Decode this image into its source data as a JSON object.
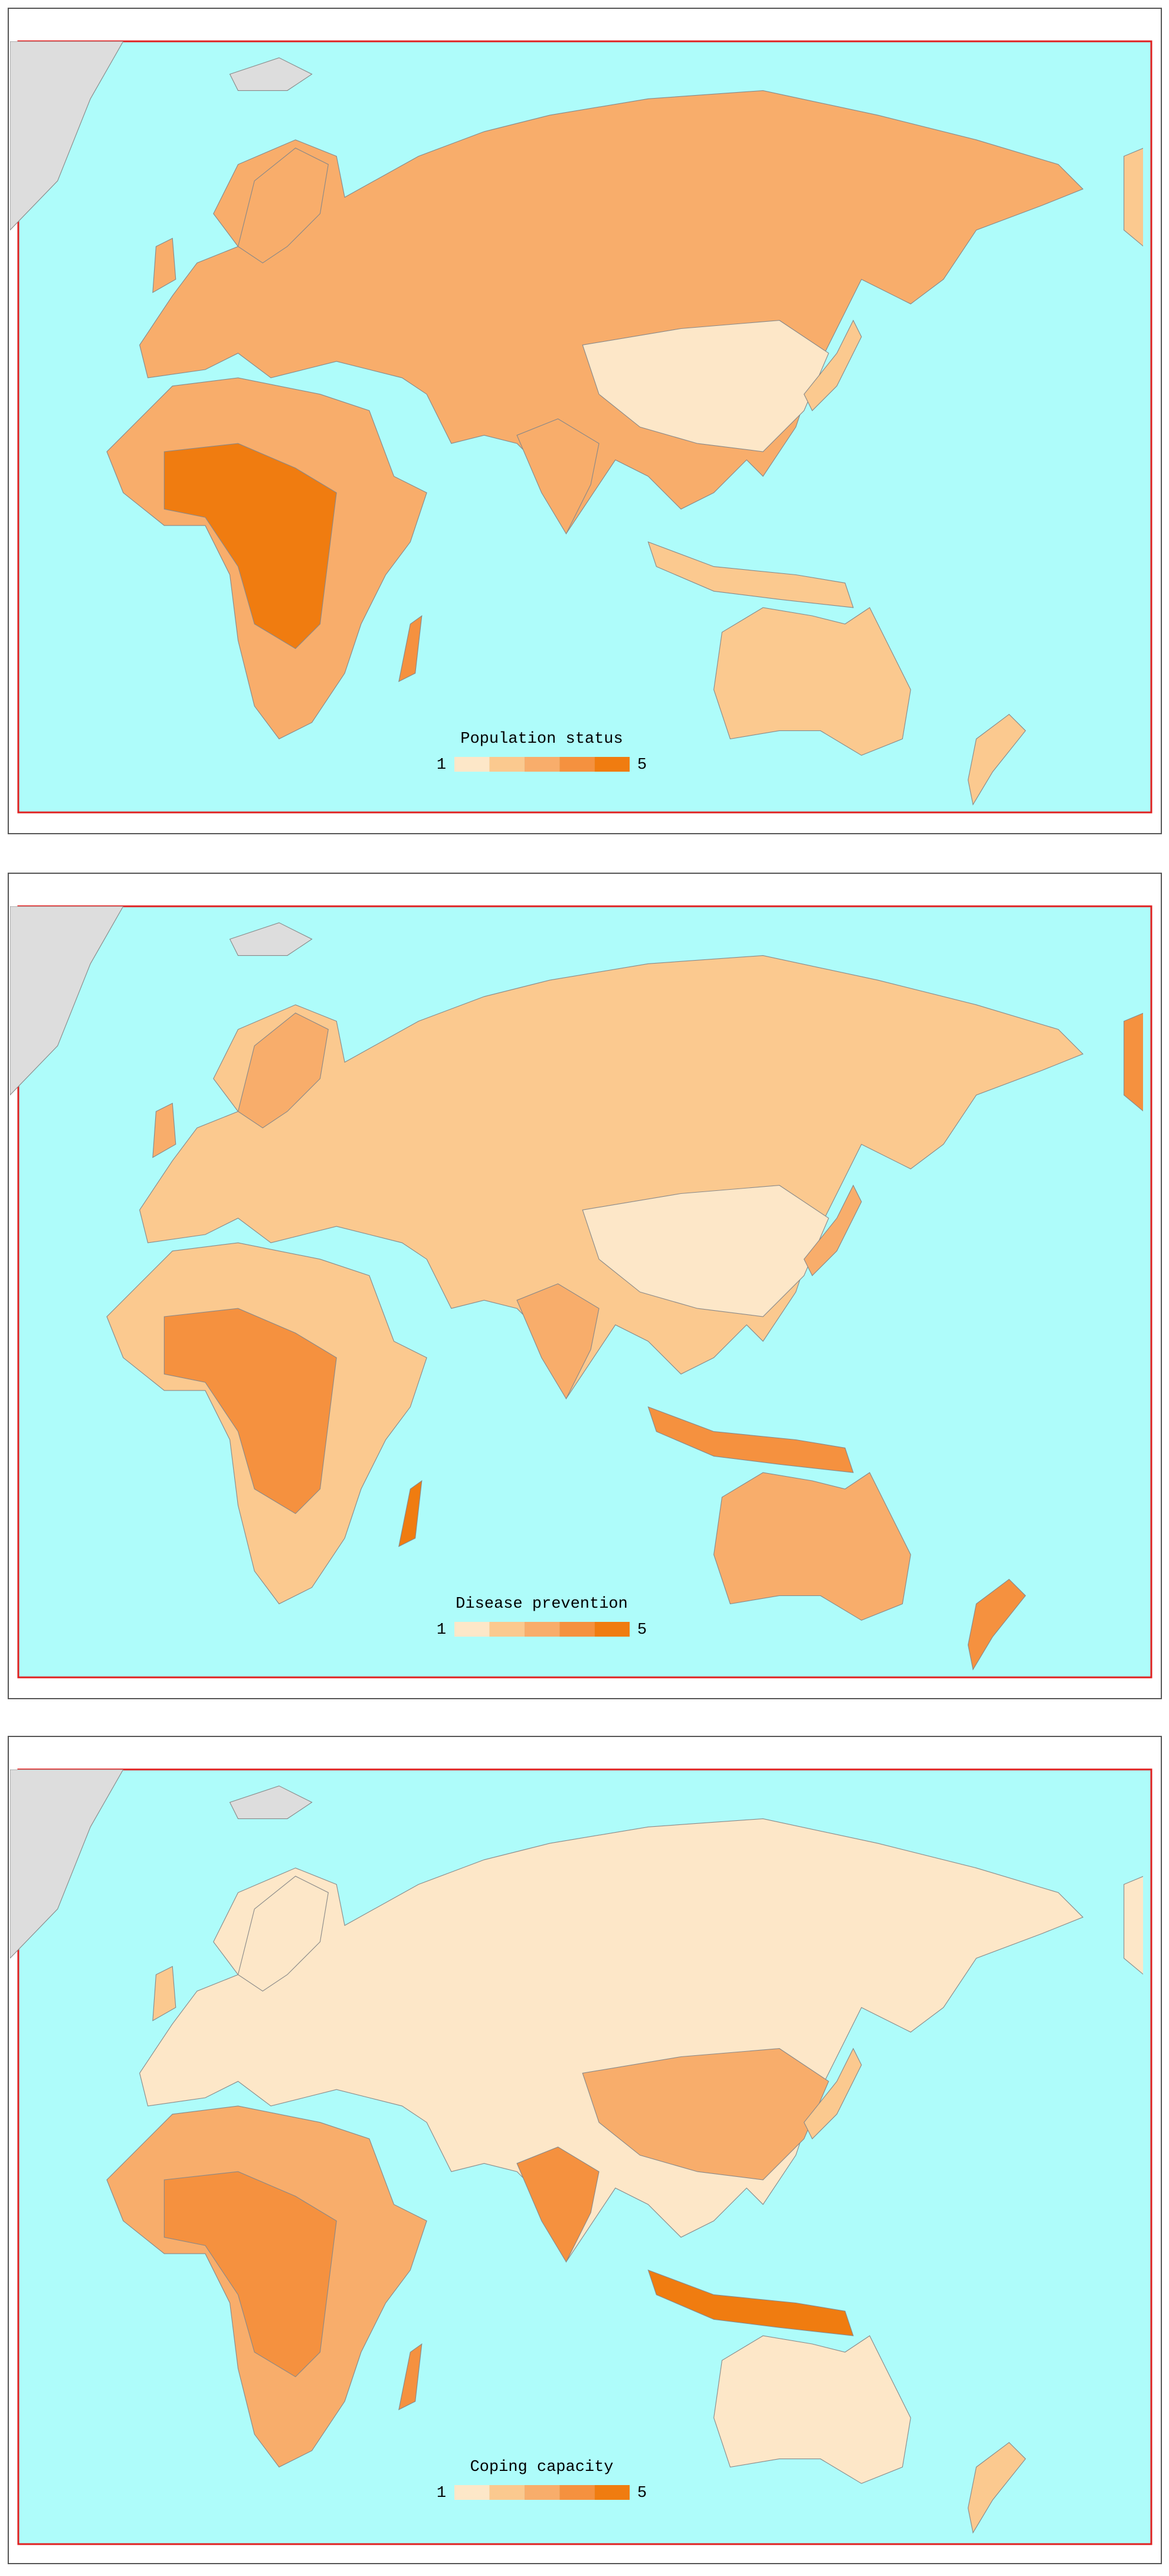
{
  "panels": [
    {
      "legend": {
        "title": "Population status",
        "min": 1,
        "max": 5
      }
    },
    {
      "legend": {
        "title": "Disease prevention",
        "min": 1,
        "max": 5
      }
    },
    {
      "legend": {
        "title": "Coping capacity",
        "min": 1,
        "max": 5
      }
    }
  ],
  "legend_colors": [
    "#fde7c8",
    "#fbc98f",
    "#f8ad6b",
    "#f5913f",
    "#f07c10"
  ]
}
